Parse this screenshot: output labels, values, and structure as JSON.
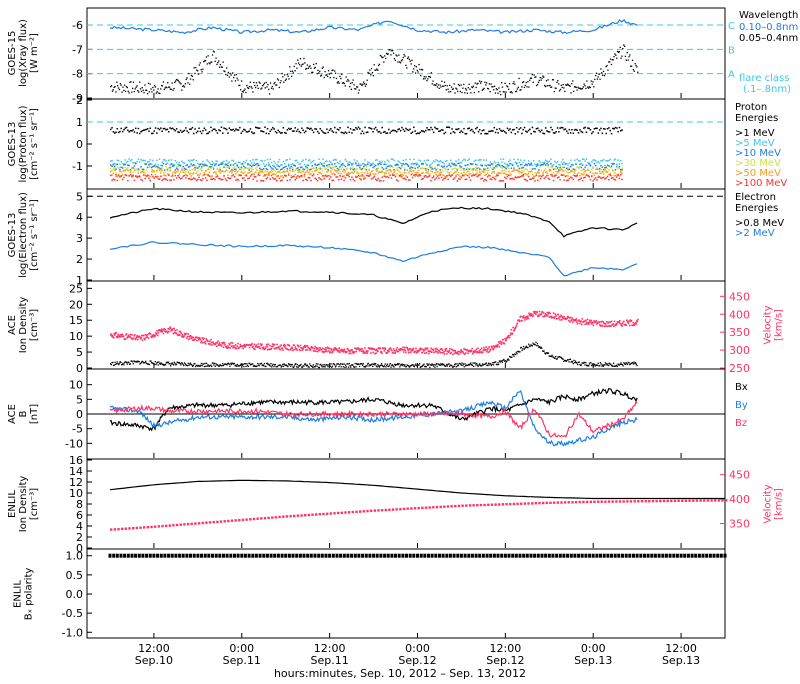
{
  "x_axis": {
    "ticks": [
      {
        "time": "12:00",
        "date": "Sep.10"
      },
      {
        "time": "0:00",
        "date": "Sep.11"
      },
      {
        "time": "12:00",
        "date": "Sep.11"
      },
      {
        "time": "0:00",
        "date": "Sep.12"
      },
      {
        "time": "12:00",
        "date": "Sep.12"
      },
      {
        "time": "0:00",
        "date": "Sep.13"
      },
      {
        "time": "12:00",
        "date": "Sep.13"
      }
    ],
    "label": "hours:minutes, Sep. 10, 2012 – Sep. 13, 2012"
  },
  "colors": {
    "xray_long": "#1e7fe0",
    "xray_short": "#000000",
    "threshold": "#40c8e8",
    "density": "#000000",
    "velocity": "#ff3366",
    "bx": "#000000",
    "by": "#1e7fe0",
    "bz": "#ff3366"
  },
  "chart_data": [
    {
      "type": "line",
      "panel": "goes15_xray",
      "ylabel": "GOES-15\nlog(Xray flux)\n[W m⁻²]",
      "ylim": [
        -9,
        -5.3
      ],
      "ticks": [
        "-9",
        "-8",
        "-7",
        "-6"
      ],
      "tick_values": [
        -9,
        -8,
        -7,
        -6
      ],
      "flare_levels": [
        {
          "label": "C",
          "value": -6
        },
        {
          "label": "B",
          "value": -7
        },
        {
          "label": "A",
          "value": -8
        }
      ],
      "legend": {
        "title": "Wavelength",
        "series": [
          "0.10–0.8nm",
          "0.05–0.4nm"
        ],
        "note": "flare class",
        "note2": "(.1–.8nm)"
      },
      "x_hours": [
        0,
        6,
        10,
        14,
        18,
        22,
        26,
        30,
        34,
        38,
        42,
        46,
        50,
        54,
        58,
        62,
        66,
        70,
        72
      ],
      "series": [
        {
          "name": "0.10–0.8nm",
          "values": [
            -6.1,
            -6.2,
            -6.3,
            -6.1,
            -6.3,
            -6.2,
            -6.3,
            -6.1,
            -6.2,
            -5.8,
            -6.2,
            -6.3,
            -6.2,
            -6.3,
            -6.2,
            -6.3,
            -6.2,
            -5.8,
            -6.0
          ]
        },
        {
          "name": "0.05–0.4nm",
          "values": [
            -8.5,
            -8.6,
            -8.4,
            -7.2,
            -8.5,
            -8.6,
            -7.5,
            -8.0,
            -8.6,
            -7.0,
            -7.8,
            -8.6,
            -8.5,
            -8.6,
            -8.2,
            -8.6,
            -8.3,
            -7.0,
            -7.9
          ]
        }
      ]
    },
    {
      "type": "scatter",
      "panel": "goes13_proton",
      "ylabel": "GOES-13\nlog(Proton flux)\n[cm⁻² s⁻¹ sr⁻¹]",
      "ylim": [
        -2,
        2
      ],
      "ticks": [
        "-1",
        "0",
        "1",
        "2"
      ],
      "tick_values": [
        -1,
        0,
        1,
        2
      ],
      "threshold": 1,
      "legend": {
        "title": "Proton",
        "title2": "Energies"
      },
      "series": [
        {
          "name": ">1 MeV",
          "color": "#000000",
          "value": 0.65
        },
        {
          "name": ">5 MeV",
          "color": "#3fc8e6",
          "value": -0.8
        },
        {
          "name": ">10 MeV",
          "color": "#1e7fe0",
          "value": -1.0
        },
        {
          "name": ">30 MeV",
          "color": "#cfe23f",
          "value": -1.15
        },
        {
          "name": ">50 MeV",
          "color": "#ff9a1a",
          "value": -1.3
        },
        {
          "name": ">100 MeV",
          "color": "#ff3333",
          "value": -1.5
        }
      ]
    },
    {
      "type": "line",
      "panel": "goes13_electron",
      "ylabel": "GOES-13\nlog(Electron flux)\n[cm⁻² s⁻¹ sr⁻¹]",
      "ylim": [
        1,
        5.3
      ],
      "ticks": [
        "1",
        "2",
        "3",
        "4",
        "5"
      ],
      "tick_values": [
        1,
        2,
        3,
        4,
        5
      ],
      "threshold": 5,
      "legend": {
        "title": "Electron",
        "title2": "Energies"
      },
      "x_hours": [
        0,
        6,
        12,
        18,
        24,
        30,
        36,
        40,
        44,
        48,
        52,
        56,
        60,
        62,
        66,
        70,
        72
      ],
      "series": [
        {
          "name": ">0.8 MeV",
          "color": "#000000",
          "values": [
            4.0,
            4.4,
            4.25,
            4.2,
            4.3,
            4.25,
            4.1,
            3.7,
            4.3,
            4.45,
            4.4,
            4.2,
            3.8,
            3.1,
            3.5,
            3.4,
            3.7
          ]
        },
        {
          "name": ">2 MeV",
          "color": "#1e7fe0",
          "values": [
            2.5,
            2.8,
            2.7,
            2.6,
            2.65,
            2.55,
            2.3,
            1.9,
            2.3,
            2.6,
            2.55,
            2.3,
            2.1,
            1.2,
            1.6,
            1.5,
            1.8
          ]
        }
      ]
    },
    {
      "type": "line",
      "panel": "ace_plasma",
      "ylabel": "ACE\nIon Density\n[cm⁻³]",
      "ylabel_right": "Velocity\n[km/s]",
      "ylim": [
        0,
        27
      ],
      "ylim_right": [
        250,
        490
      ],
      "ticks": [
        "0",
        "5",
        "10",
        "15",
        "20",
        "25"
      ],
      "tick_values": [
        0,
        5,
        10,
        15,
        20,
        25
      ],
      "ticks_right": [
        "250",
        "300",
        "350",
        "400",
        "450"
      ],
      "tick_values_right": [
        250,
        300,
        350,
        400,
        450
      ],
      "x_hours": [
        0,
        4,
        8,
        12,
        16,
        20,
        24,
        28,
        32,
        36,
        40,
        44,
        48,
        52,
        54,
        56,
        58,
        60,
        64,
        68,
        72
      ],
      "density": [
        1.5,
        2.0,
        1.5,
        1.2,
        1.3,
        1.2,
        1.0,
        0.9,
        1.0,
        1.1,
        1.0,
        0.9,
        1.2,
        1.2,
        2.5,
        6.0,
        8.0,
        4.0,
        1.6,
        1.2,
        1.5
      ],
      "velocity": [
        345,
        335,
        360,
        330,
        315,
        312,
        310,
        305,
        300,
        300,
        302,
        300,
        297,
        305,
        330,
        390,
        405,
        400,
        382,
        375,
        380
      ]
    },
    {
      "type": "line",
      "panel": "ace_mag",
      "ylabel": "ACE\nB\n[nT]",
      "ylim": [
        -15,
        15
      ],
      "ticks": [
        "-10",
        "-5",
        "0",
        "5",
        "10"
      ],
      "tick_values": [
        -10,
        -5,
        0,
        5,
        10
      ],
      "x_hours": [
        0,
        4,
        6,
        8,
        12,
        16,
        20,
        24,
        28,
        32,
        36,
        40,
        44,
        48,
        52,
        54,
        56,
        58,
        60,
        62,
        64,
        66,
        68,
        70,
        72
      ],
      "series": [
        {
          "name": "Bx",
          "color": "#000000",
          "values": [
            -3,
            -4,
            -5,
            2,
            3,
            3,
            4,
            4,
            4,
            4,
            5,
            3,
            3,
            -2,
            2,
            1,
            3,
            5,
            4,
            6,
            5,
            7,
            8,
            7,
            5
          ]
        },
        {
          "name": "By",
          "color": "#1e7fe0",
          "values": [
            2,
            1,
            -4,
            -3,
            -1,
            -1,
            -1,
            -1,
            -2,
            -1,
            -2,
            -1,
            0,
            1,
            4,
            2,
            8,
            -5,
            -10,
            -10,
            -9,
            -8,
            -5,
            -3,
            -2
          ]
        },
        {
          "name": "Bz",
          "color": "#ff3366",
          "values": [
            1,
            2,
            2,
            1,
            1,
            1,
            1,
            0,
            0,
            0,
            0,
            0,
            0,
            0,
            -1,
            1,
            -5,
            2,
            -7,
            -8,
            0,
            -6,
            -4,
            -2,
            4
          ]
        }
      ]
    },
    {
      "type": "line",
      "panel": "enlil_plasma",
      "ylabel": "ENLIL\nIon Density\n[cm⁻³]",
      "ylabel_right": "Velocity\n[km/s]",
      "ylim": [
        0,
        16
      ],
      "ylim_right": [
        300,
        480
      ],
      "ticks": [
        "0",
        "2",
        "4",
        "6",
        "8",
        "10",
        "12",
        "14",
        "16"
      ],
      "tick_values": [
        0,
        2,
        4,
        6,
        8,
        10,
        12,
        14,
        16
      ],
      "ticks_right": [
        "350",
        "400",
        "450"
      ],
      "tick_values_right": [
        350,
        400,
        450
      ],
      "x_hours": [
        0,
        6,
        12,
        18,
        24,
        30,
        36,
        42,
        48,
        54,
        60,
        66,
        72,
        78,
        84
      ],
      "density": [
        10.6,
        11.5,
        12.1,
        12.3,
        12.2,
        11.9,
        11.4,
        10.7,
        10.0,
        9.5,
        9.2,
        9.0,
        9.0,
        9.0,
        9.0
      ],
      "velocity": [
        340,
        346,
        353,
        360,
        367,
        373,
        379,
        384,
        389,
        392,
        395,
        397,
        398,
        399,
        400
      ]
    },
    {
      "type": "scatter",
      "panel": "enlil_polarity",
      "ylabel": "ENLIL\nBₓ polarity",
      "ylim": [
        -1.15,
        1.15
      ],
      "ticks": [
        "-1.0",
        "-0.5",
        "0.0",
        "0.5",
        "1.0"
      ],
      "tick_values": [
        -1.0,
        -0.5,
        0.0,
        0.5,
        1.0
      ],
      "value": 1.0
    }
  ]
}
